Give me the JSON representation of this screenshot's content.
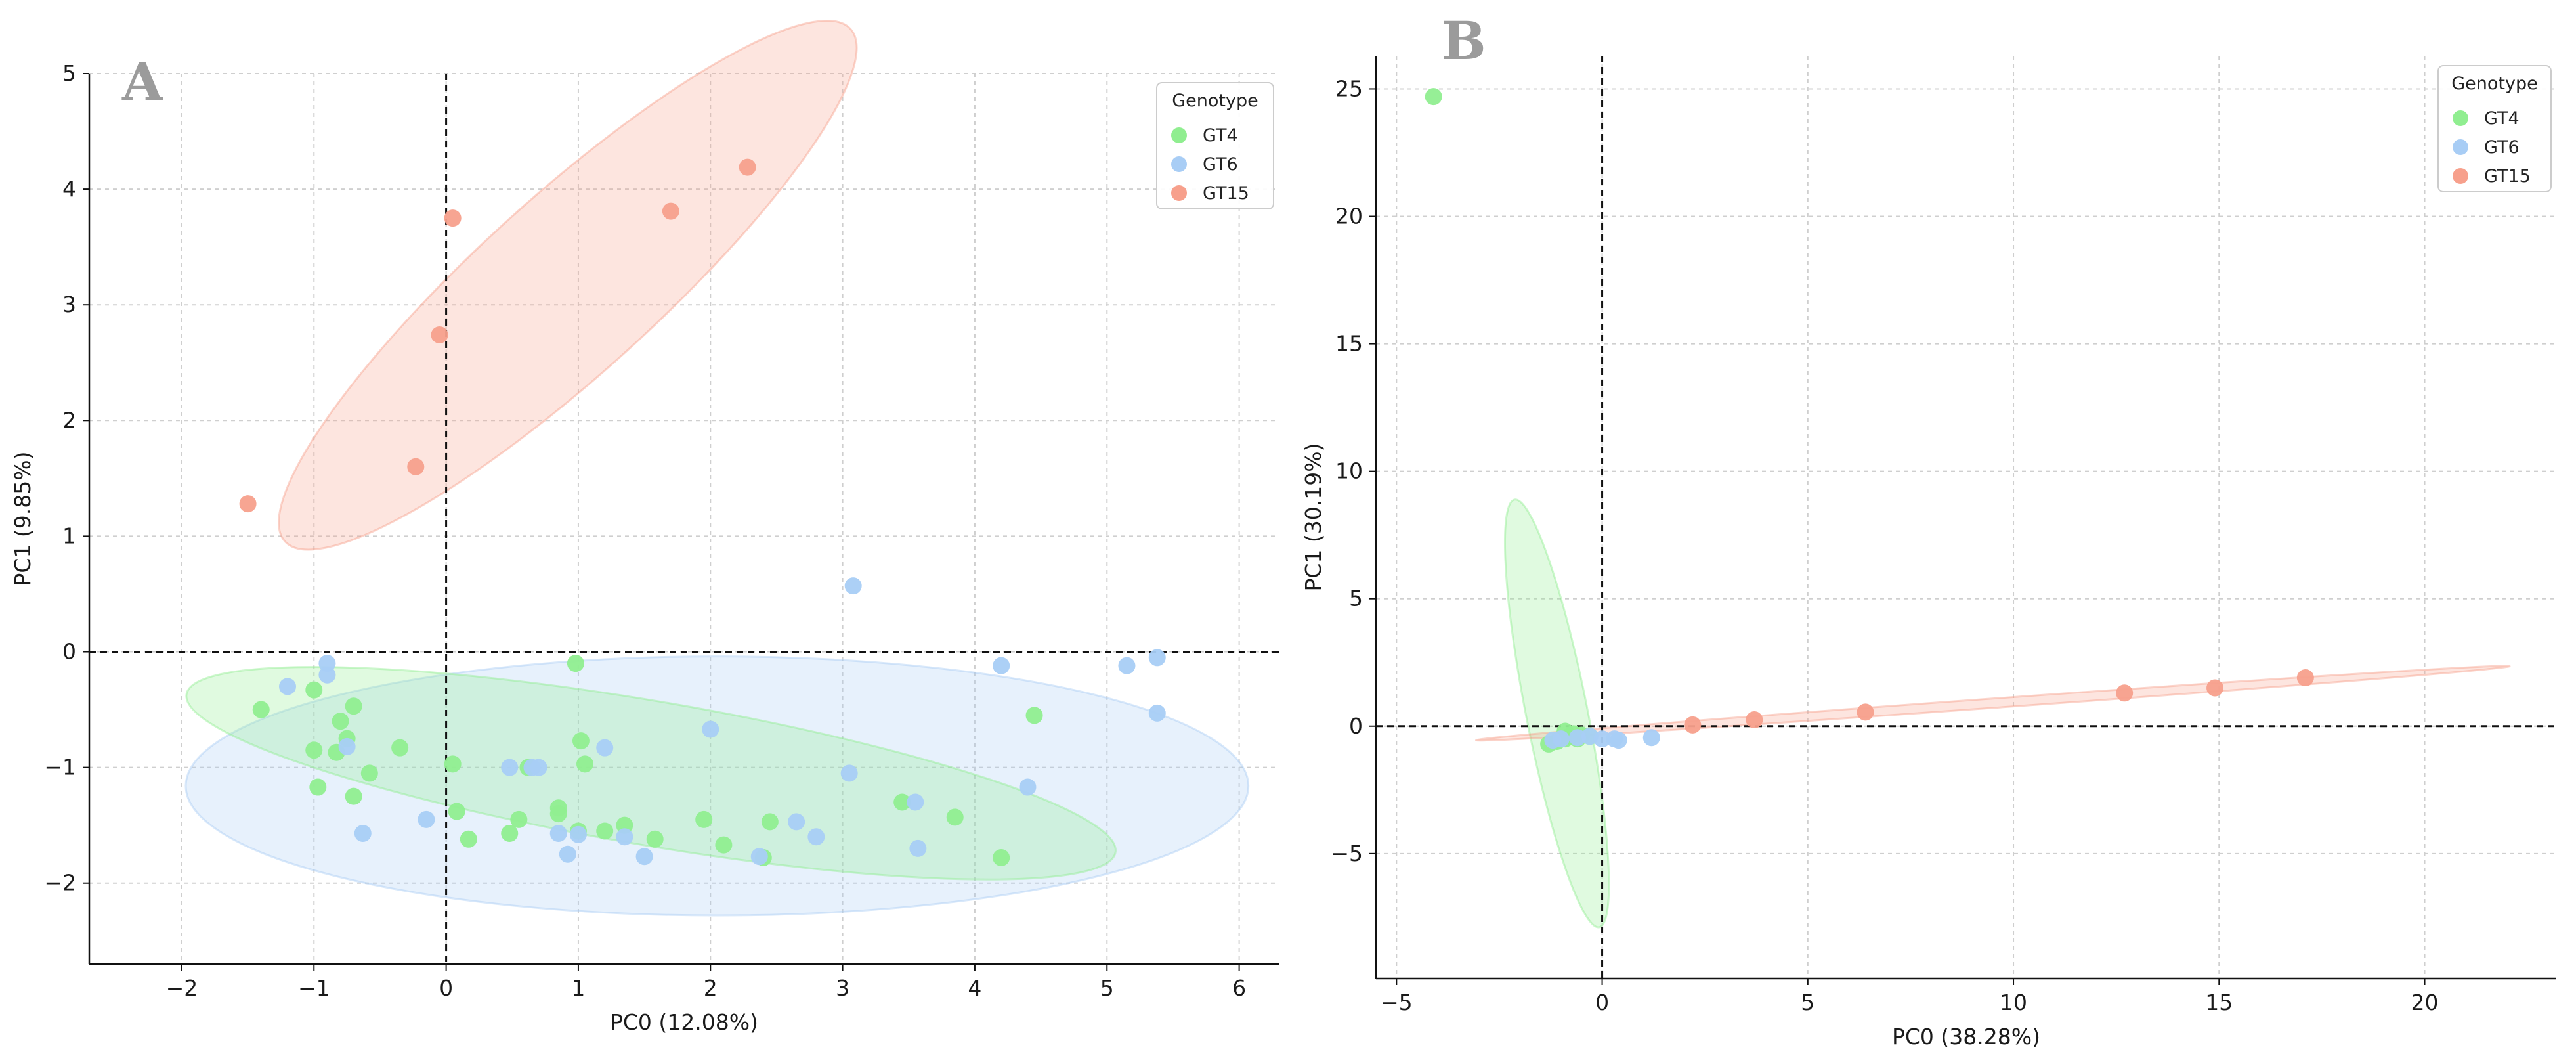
{
  "colors": {
    "GT4": "#90ee90",
    "GT6": "#a8cdf5",
    "GT15": "#f7a08c"
  },
  "chart_data": [
    {
      "type": "scatter",
      "panel_label": "A",
      "xlabel": "PC0 (12.08%)",
      "ylabel": "PC1 (9.85%)",
      "xlim": [
        -2.7,
        6.3
      ],
      "ylim": [
        -2.7,
        5.0
      ],
      "xticks": [
        -2,
        -1,
        0,
        1,
        2,
        3,
        4,
        5,
        6
      ],
      "xtick_labels": [
        "−2",
        "−1",
        "0",
        "1",
        "2",
        "3",
        "4",
        "5",
        "6"
      ],
      "yticks": [
        -2,
        -1,
        0,
        1,
        2,
        3,
        4,
        5
      ],
      "ytick_labels": [
        "−2",
        "−1",
        "0",
        "1",
        "2",
        "3",
        "4",
        "5"
      ],
      "grid": true,
      "legend_title": "Genotype",
      "legend_position": "top-right",
      "series": [
        {
          "name": "GT4",
          "points": [
            [
              -1.4,
              -0.5
            ],
            [
              -1.0,
              -0.33
            ],
            [
              -1.0,
              -0.85
            ],
            [
              -0.97,
              -1.17
            ],
            [
              -0.83,
              -0.87
            ],
            [
              -0.8,
              -0.6
            ],
            [
              -0.75,
              -0.75
            ],
            [
              -0.7,
              -0.47
            ],
            [
              -0.7,
              -1.25
            ],
            [
              -0.58,
              -1.05
            ],
            [
              -0.35,
              -0.83
            ],
            [
              0.05,
              -0.97
            ],
            [
              0.08,
              -1.38
            ],
            [
              0.17,
              -1.62
            ],
            [
              0.48,
              -1.57
            ],
            [
              0.55,
              -1.45
            ],
            [
              0.62,
              -1.0
            ],
            [
              0.85,
              -1.35
            ],
            [
              0.85,
              -1.4
            ],
            [
              0.98,
              -0.1
            ],
            [
              1.0,
              -1.55
            ],
            [
              1.02,
              -0.77
            ],
            [
              1.05,
              -0.97
            ],
            [
              1.2,
              -1.55
            ],
            [
              1.35,
              -1.5
            ],
            [
              1.58,
              -1.62
            ],
            [
              1.95,
              -1.45
            ],
            [
              2.1,
              -1.67
            ],
            [
              2.4,
              -1.78
            ],
            [
              2.45,
              -1.47
            ],
            [
              3.45,
              -1.3
            ],
            [
              3.85,
              -1.43
            ],
            [
              4.2,
              -1.78
            ],
            [
              4.45,
              -0.55
            ]
          ]
        },
        {
          "name": "GT6",
          "points": [
            [
              -1.2,
              -0.3
            ],
            [
              -0.9,
              -0.1
            ],
            [
              -0.9,
              -0.2
            ],
            [
              -0.75,
              -0.82
            ],
            [
              -0.63,
              -1.57
            ],
            [
              -0.15,
              -1.45
            ],
            [
              0.48,
              -1.0
            ],
            [
              0.65,
              -1.0
            ],
            [
              0.7,
              -1.0
            ],
            [
              0.85,
              -1.57
            ],
            [
              0.92,
              -1.75
            ],
            [
              1.0,
              -1.58
            ],
            [
              1.2,
              -0.83
            ],
            [
              1.35,
              -1.6
            ],
            [
              1.5,
              -1.77
            ],
            [
              2.0,
              -0.67
            ],
            [
              2.37,
              -1.77
            ],
            [
              2.65,
              -1.47
            ],
            [
              2.8,
              -1.6
            ],
            [
              3.05,
              -1.05
            ],
            [
              3.08,
              0.57
            ],
            [
              3.55,
              -1.3
            ],
            [
              3.57,
              -1.7
            ],
            [
              4.2,
              -0.12
            ],
            [
              4.4,
              -1.17
            ],
            [
              5.15,
              -0.12
            ],
            [
              5.38,
              -0.05
            ],
            [
              5.38,
              -0.53
            ]
          ]
        },
        {
          "name": "GT15",
          "points": [
            [
              -1.5,
              1.28
            ],
            [
              -0.23,
              1.6
            ],
            [
              -0.05,
              2.74
            ],
            [
              0.05,
              3.75
            ],
            [
              1.7,
              3.81
            ],
            [
              2.28,
              4.19
            ]
          ]
        }
      ],
      "ellipses": [
        {
          "name": "GT15",
          "center": [
            0.92,
            3.17
          ],
          "semi_axes": [
            3.08,
            0.71
          ],
          "angle_deg": 46
        },
        {
          "name": "GT6",
          "center": [
            2.05,
            -1.16
          ],
          "semi_axes": [
            4.02,
            1.12
          ],
          "angle_deg": 0
        },
        {
          "name": "GT4",
          "center": [
            1.55,
            -1.05
          ],
          "semi_axes": [
            3.58,
            0.62
          ],
          "angle_deg": -11
        }
      ]
    },
    {
      "type": "scatter",
      "panel_label": "B",
      "xlabel": "PC0 (38.28%)",
      "ylabel": "PC1 (30.19%)",
      "xlim": [
        -5.5,
        23.2
      ],
      "ylim": [
        -9.9,
        26.3
      ],
      "xticks": [
        -5,
        0,
        5,
        10,
        15,
        20
      ],
      "xtick_labels": [
        "−5",
        "0",
        "5",
        "10",
        "15",
        "20"
      ],
      "yticks": [
        -5,
        0,
        5,
        10,
        15,
        20,
        25
      ],
      "ytick_labels": [
        "−5",
        "0",
        "5",
        "10",
        "15",
        "20",
        "25"
      ],
      "grid": true,
      "legend_title": "Genotype",
      "legend_position": "top-right",
      "series": [
        {
          "name": "GT4",
          "points": [
            [
              -4.1,
              24.7
            ],
            [
              -1.3,
              -0.7
            ],
            [
              -1.1,
              -0.6
            ],
            [
              -0.9,
              -0.5
            ],
            [
              -0.8,
              -0.4
            ],
            [
              -0.7,
              -0.3
            ],
            [
              -0.6,
              -0.5
            ],
            [
              -0.5,
              -0.35
            ],
            [
              -0.9,
              -0.2
            ],
            [
              -0.3,
              -0.4
            ]
          ]
        },
        {
          "name": "GT6",
          "points": [
            [
              -1.2,
              -0.55
            ],
            [
              -1.0,
              -0.5
            ],
            [
              -0.6,
              -0.45
            ],
            [
              -0.3,
              -0.4
            ],
            [
              0.0,
              -0.5
            ],
            [
              0.3,
              -0.5
            ],
            [
              0.4,
              -0.55
            ],
            [
              1.2,
              -0.45
            ]
          ]
        },
        {
          "name": "GT15",
          "points": [
            [
              2.2,
              0.05
            ],
            [
              3.7,
              0.25
            ],
            [
              6.4,
              0.55
            ],
            [
              12.7,
              1.3
            ],
            [
              14.9,
              1.5
            ],
            [
              17.1,
              1.9
            ]
          ]
        }
      ],
      "ellipses": [
        {
          "name": "GT4",
          "center": [
            -1.1,
            0.5
          ],
          "semi_axes": [
            8.45,
            0.75
          ],
          "angle_deg": 97
        },
        {
          "name": "GT15",
          "center": [
            9.5,
            0.9
          ],
          "semi_axes": [
            12.65,
            0.18
          ],
          "angle_deg": 6.6
        }
      ]
    }
  ]
}
